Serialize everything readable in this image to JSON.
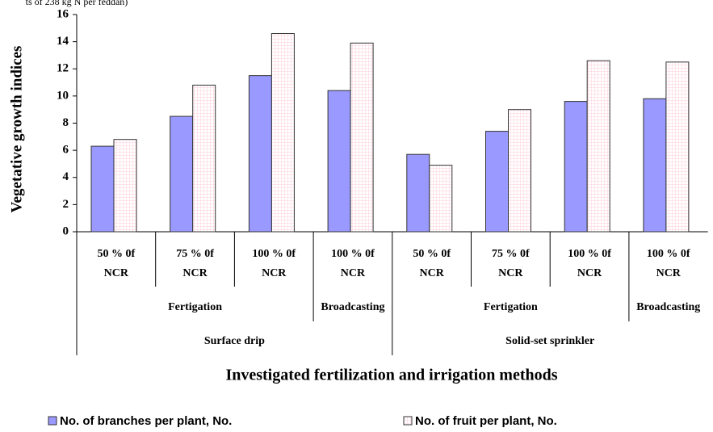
{
  "chart_data": {
    "type": "bar",
    "title": "ts of 238 kg N per feddan)",
    "ylabel": "Vegetative growth indices",
    "xlabel": "Investigated fertilization and irrigation methods",
    "categories": [
      [
        "50 % 0f",
        "NCR"
      ],
      [
        "75 % 0f",
        "NCR"
      ],
      [
        "100 % 0f",
        "NCR"
      ],
      [
        "100 % 0f",
        "NCR"
      ],
      [
        "50 % 0f",
        "NCR"
      ],
      [
        "75 % 0f",
        "NCR"
      ],
      [
        "100 % 0f",
        "NCR"
      ],
      [
        "100 % 0f",
        "NCR"
      ]
    ],
    "category_groups": [
      {
        "label": "Fertigation",
        "span": 3
      },
      {
        "label": "Broadcasting",
        "span": 1
      },
      {
        "label": "Fertigation",
        "span": 3
      },
      {
        "label": "Broadcasting",
        "span": 1
      }
    ],
    "category_supergroups": [
      {
        "label": "Surface drip",
        "span": 4
      },
      {
        "label": "Solid-set sprinkler",
        "span": 4
      }
    ],
    "series": [
      {
        "name": "No. of branches per plant, No.",
        "color": "#9999ff",
        "values": [
          6.3,
          8.5,
          11.5,
          10.4,
          5.7,
          7.4,
          9.6,
          9.8
        ]
      },
      {
        "name": "No. of fruit per plant, No.",
        "color": "#ffd6e0",
        "pattern": true,
        "values": [
          6.8,
          10.8,
          14.6,
          13.9,
          4.9,
          9.0,
          12.6,
          12.5
        ]
      }
    ],
    "ylim": [
      0,
      16
    ],
    "yticks": [
      0,
      2,
      4,
      6,
      8,
      10,
      12,
      14,
      16
    ]
  }
}
